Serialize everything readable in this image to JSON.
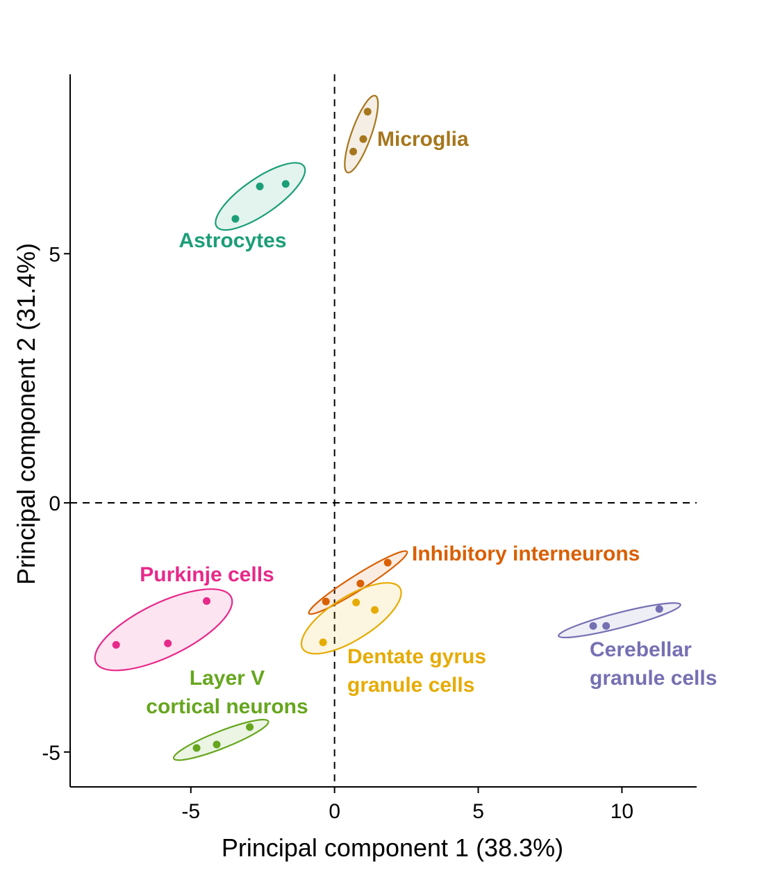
{
  "chart_data": {
    "type": "scatter",
    "title": "",
    "xlabel": "Principal component 1 (38.3%)",
    "ylabel": "Principal component 2 (31.4%)",
    "xlim": [
      -9.2,
      12.6
    ],
    "ylim": [
      -5.7,
      8.6
    ],
    "x_ticks": [
      -5,
      0,
      5,
      10
    ],
    "y_ticks": [
      -5,
      0,
      5
    ],
    "x_tick_labels": [
      "-5",
      "0",
      "5",
      "10"
    ],
    "y_tick_labels": [
      "-5",
      "0",
      "5"
    ],
    "reference_lines": {
      "x": 0,
      "y": 0,
      "style": "dashed"
    },
    "grid": false,
    "legend": "none",
    "groups": [
      {
        "name": "Microglia",
        "label_lines": [
          "Microglia"
        ],
        "color": "#A6761D",
        "points": [
          [
            0.65,
            7.05
          ],
          [
            1.0,
            7.3
          ],
          [
            1.15,
            7.85
          ]
        ]
      },
      {
        "name": "Astrocytes",
        "label_lines": [
          "Astrocytes"
        ],
        "color": "#1B9E77",
        "points": [
          [
            -3.45,
            5.7
          ],
          [
            -2.6,
            6.35
          ],
          [
            -1.7,
            6.4
          ]
        ]
      },
      {
        "name": "Inhibitory interneurons",
        "label_lines": [
          "Inhibitory interneurons"
        ],
        "color": "#D95F02",
        "points": [
          [
            -0.3,
            -1.98
          ],
          [
            0.9,
            -1.62
          ],
          [
            1.85,
            -1.2
          ]
        ]
      },
      {
        "name": "Purkinje cells",
        "label_lines": [
          "Purkinje cells"
        ],
        "color": "#E7298A",
        "points": [
          [
            -7.6,
            -2.85
          ],
          [
            -5.8,
            -2.82
          ],
          [
            -4.45,
            -1.97
          ]
        ]
      },
      {
        "name": "Dentate gyrus granule cells",
        "label_lines": [
          "Dentate gyrus",
          "granule cells"
        ],
        "color": "#E6AB02",
        "points": [
          [
            -0.4,
            -2.8
          ],
          [
            0.75,
            -2.0
          ],
          [
            1.4,
            -2.15
          ]
        ]
      },
      {
        "name": "Cerebellar granule cells",
        "label_lines": [
          "Cerebellar",
          "granule cells"
        ],
        "color": "#7570B3",
        "points": [
          [
            9.0,
            -2.47
          ],
          [
            9.45,
            -2.47
          ],
          [
            11.3,
            -2.13
          ]
        ]
      },
      {
        "name": "Layer V cortical neurons",
        "label_lines": [
          "Layer V",
          "cortical neurons"
        ],
        "color": "#66A61E",
        "points": [
          [
            -4.8,
            -4.92
          ],
          [
            -4.1,
            -4.85
          ],
          [
            -2.95,
            -4.5
          ]
        ]
      }
    ]
  }
}
